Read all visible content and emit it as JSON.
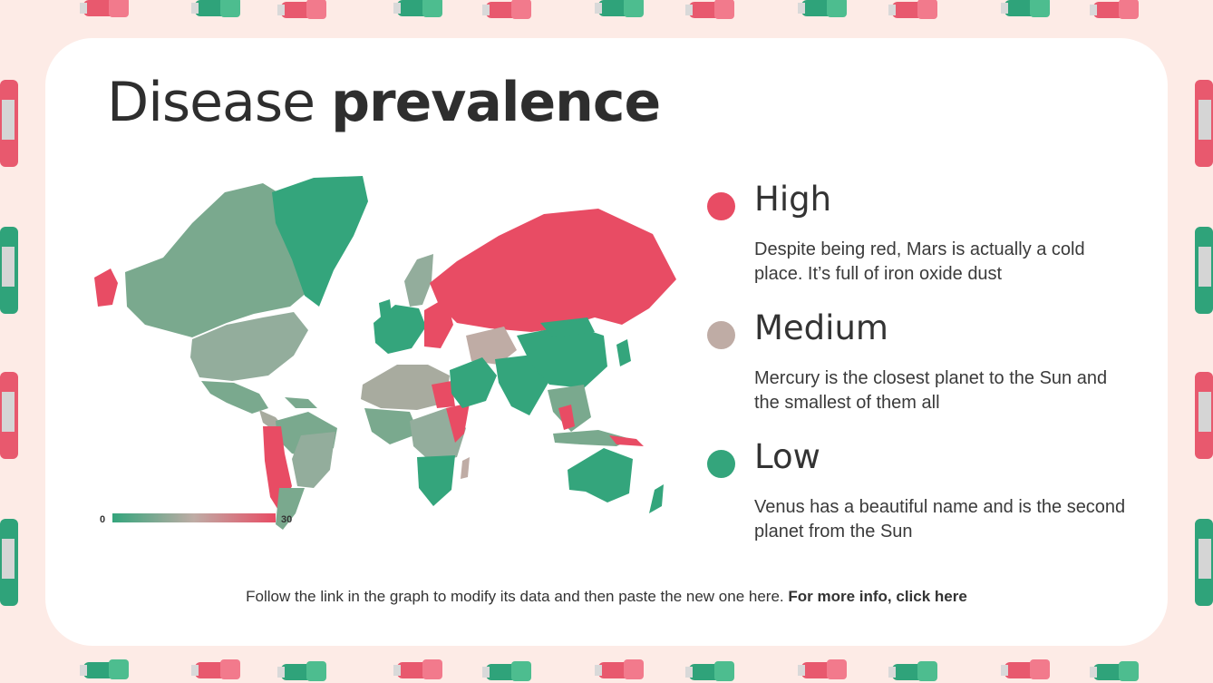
{
  "title": {
    "regular": "Disease",
    "bold": "prevalence"
  },
  "legend": [
    {
      "heading": "High",
      "color": "#e84c64",
      "description": "Despite being red, Mars is actually a cold place. It’s full of iron oxide dust"
    },
    {
      "heading": "Medium",
      "color": "#bfaca5",
      "description": "Mercury is the closest planet to the Sun and the smallest of them all"
    },
    {
      "heading": "Low",
      "color": "#34a57c",
      "description": "Venus has a beautiful name and is the second planet from the Sun"
    }
  ],
  "map": {
    "scale_min": "0",
    "scale_max": "30",
    "colors": {
      "low": "#34a57c",
      "mid_low": "#7aa98e",
      "medium": "#bfaca5",
      "high": "#e84c64"
    }
  },
  "footer": {
    "text": "Follow the link in the graph to modify its data and then paste the new one here.",
    "link": "For more info, click here"
  }
}
